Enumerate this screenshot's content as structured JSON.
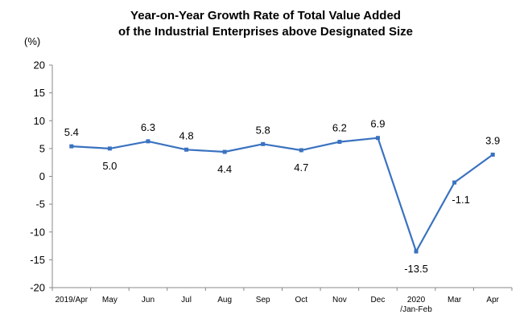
{
  "chart_data": {
    "type": "line",
    "title_lines": [
      "Year-on-Year Growth Rate of Total Value Added",
      "of the Industrial Enterprises above Designated Size"
    ],
    "ylabel": "(%)",
    "ylim": [
      -20,
      20
    ],
    "yticks": [
      20,
      15,
      10,
      5,
      0,
      -5,
      -10,
      -15,
      -20
    ],
    "grid": false,
    "categories": [
      {
        "line1": "2019/Apr",
        "line2": ""
      },
      {
        "line1": "May",
        "line2": ""
      },
      {
        "line1": "Jun",
        "line2": ""
      },
      {
        "line1": "Jul",
        "line2": ""
      },
      {
        "line1": "Aug",
        "line2": ""
      },
      {
        "line1": "Sep",
        "line2": ""
      },
      {
        "line1": "Oct",
        "line2": ""
      },
      {
        "line1": "Nov",
        "line2": ""
      },
      {
        "line1": "Dec",
        "line2": ""
      },
      {
        "line1": "2020",
        "line2": "/Jan-Feb"
      },
      {
        "line1": "Mar",
        "line2": ""
      },
      {
        "line1": "Apr",
        "line2": ""
      }
    ],
    "series": [
      {
        "values": [
          5.4,
          5.0,
          6.3,
          4.8,
          4.4,
          5.8,
          4.7,
          6.2,
          6.9,
          -13.5,
          -1.1,
          3.9
        ],
        "labels": [
          "5.4",
          "5.0",
          "6.3",
          "4.8",
          "4.4",
          "5.8",
          "4.7",
          "6.2",
          "6.9",
          "-13.5",
          "-1.1",
          "3.9"
        ],
        "color": "#3a72c0"
      }
    ]
  }
}
